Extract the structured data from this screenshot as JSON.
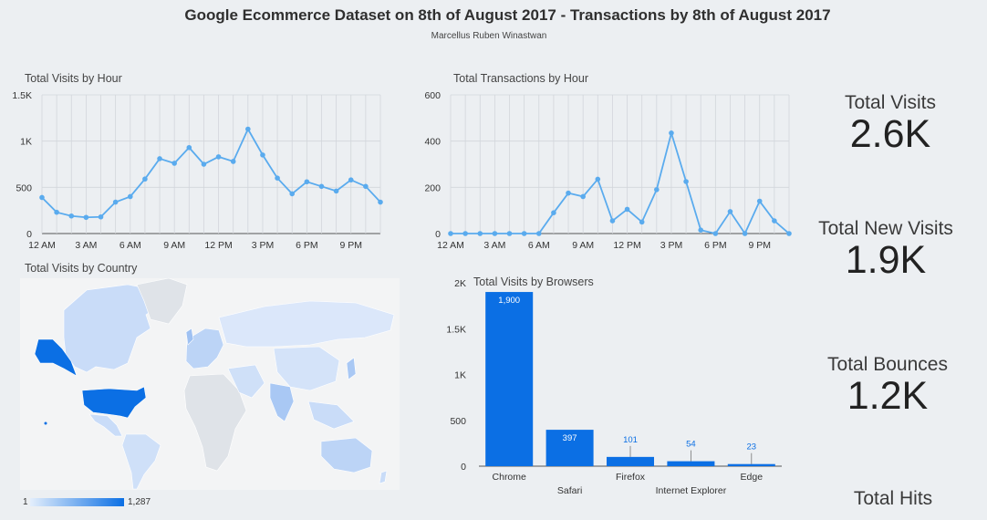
{
  "header": {
    "title": "Google Ecommerce Dataset on 8th of August 2017 - Transactions by  8th of August 2017",
    "subtitle": "Marcellus Ruben Winastwan"
  },
  "panels": {
    "visits_by_hour": "Total Visits by Hour",
    "transactions_by_hour": "Total Transactions by Hour",
    "visits_by_country": "Total Visits by Country",
    "visits_by_browsers": "Total Visits by Browsers"
  },
  "kpis": [
    {
      "label": "Total Visits",
      "value": "2.6K"
    },
    {
      "label": "Total New Visits",
      "value": "1.9K"
    },
    {
      "label": "Total Bounces",
      "value": "1.2K"
    },
    {
      "label": "Total Hits",
      "value": ""
    }
  ],
  "map_legend": {
    "min": "1",
    "max": "1,287",
    "color_low": "#e3eefc",
    "color_high": "#0b6fe4"
  },
  "chart_data": [
    {
      "type": "line",
      "title": "Total Visits by Hour",
      "x": [
        0,
        1,
        2,
        3,
        4,
        5,
        6,
        7,
        8,
        9,
        10,
        11,
        12,
        13,
        14,
        15,
        16,
        17,
        18,
        19,
        20,
        21,
        22,
        23
      ],
      "x_tick_labels": [
        "12 AM",
        "3 AM",
        "6 AM",
        "9 AM",
        "12 PM",
        "3 PM",
        "6 PM",
        "9 PM"
      ],
      "y_tick_labels": [
        "0",
        "500",
        "1K",
        "1.5K"
      ],
      "ylim": [
        0,
        1500
      ],
      "values": [
        390,
        230,
        190,
        175,
        180,
        340,
        400,
        590,
        810,
        760,
        930,
        750,
        830,
        780,
        1130,
        850,
        600,
        430,
        560,
        510,
        460,
        580,
        510,
        340
      ],
      "color": "#5aabee",
      "grid": true
    },
    {
      "type": "line",
      "title": "Total Transactions by Hour",
      "x": [
        0,
        1,
        2,
        3,
        4,
        5,
        6,
        7,
        8,
        9,
        10,
        11,
        12,
        13,
        14,
        15,
        16,
        17,
        18,
        19,
        20,
        21,
        22,
        23
      ],
      "x_tick_labels": [
        "12 AM",
        "3 AM",
        "6 AM",
        "9 AM",
        "12 PM",
        "3 PM",
        "6 PM",
        "9 PM"
      ],
      "y_tick_labels": [
        "0",
        "200",
        "400",
        "600"
      ],
      "ylim": [
        0,
        600
      ],
      "values": [
        0,
        0,
        0,
        0,
        0,
        0,
        0,
        90,
        175,
        160,
        235,
        55,
        105,
        50,
        190,
        435,
        225,
        15,
        0,
        95,
        0,
        140,
        55,
        0
      ],
      "color": "#5aabee",
      "grid": true
    },
    {
      "type": "bar",
      "title": "Total Visits by Browsers",
      "categories": [
        "Chrome",
        "Safari",
        "Firefox",
        "Internet Explorer",
        "Edge"
      ],
      "values": [
        1900,
        397,
        101,
        54,
        23
      ],
      "data_labels": [
        "1,900",
        "397",
        "101",
        "54",
        "23"
      ],
      "y_tick_labels": [
        "0",
        "500",
        "1K",
        "1.5K",
        "2K"
      ],
      "ylim": [
        0,
        2000
      ],
      "color": "#0b6fe4"
    }
  ]
}
